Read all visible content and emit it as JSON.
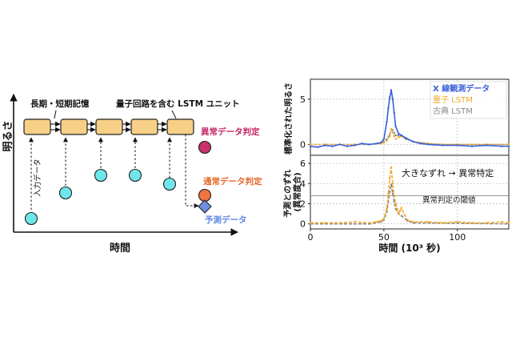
{
  "diagram": {
    "axis_y_label": "明るさ",
    "axis_x_label": "時間",
    "lstm_label": "長期・短期記憶",
    "quantum_label": "量子回路を含む LSTM ユニット",
    "input_label": "入力データ",
    "anomaly_label": "異常データ判定",
    "normal_label": "通常データ判定",
    "predict_label": "予測データ",
    "colors": {
      "cell_fill": "#f7cf86",
      "cell_stroke": "#222222",
      "input_dot": "#6fe6ea",
      "anomaly_dot": "#c7326b",
      "normal_dot": "#ee7440",
      "predict_diamond": "#6f8ee0",
      "anomaly_text": "#c52b67",
      "normal_text": "#e46a2b",
      "predict_text": "#5f86e0"
    }
  },
  "chart_data": [
    {
      "type": "line",
      "ylabel": "標準化された明るさ",
      "xlim": [
        0,
        135
      ],
      "ylim": [
        -1.2,
        7.2
      ],
      "yticks": [
        0,
        5
      ],
      "grid": true,
      "legend_position": "top-right",
      "series": [
        {
          "name": "X 線観測データ",
          "color": "#3a5fd9",
          "x": [
            0,
            5,
            10,
            15,
            20,
            25,
            30,
            35,
            40,
            45,
            48,
            50,
            52,
            53,
            54,
            55,
            56,
            57,
            58,
            60,
            62,
            65,
            70,
            75,
            80,
            90,
            100,
            110,
            120,
            130,
            135
          ],
          "y": [
            -0.2,
            -0.3,
            -0.1,
            -0.2,
            0.0,
            -0.2,
            -0.1,
            0.1,
            0.0,
            0.1,
            0.2,
            0.6,
            2.5,
            4.0,
            5.2,
            6.0,
            5.0,
            3.5,
            2.0,
            1.2,
            1.0,
            0.7,
            0.3,
            0.1,
            0.0,
            -0.1,
            -0.1,
            -0.2,
            -0.1,
            -0.2,
            -0.2
          ]
        },
        {
          "name": "量子 LSTM",
          "color": "#f2a92b",
          "x": [
            0,
            10,
            20,
            30,
            40,
            48,
            50,
            52,
            54,
            55,
            56,
            57,
            58,
            60,
            62,
            65,
            70,
            80,
            90,
            100,
            110,
            120,
            135
          ],
          "y": [
            0.0,
            0.0,
            0.0,
            0.0,
            0.0,
            0.1,
            0.2,
            0.4,
            0.9,
            1.7,
            1.3,
            0.9,
            0.6,
            0.8,
            0.9,
            0.7,
            0.3,
            0.1,
            0.0,
            0.0,
            0.0,
            0.0,
            0.0
          ]
        },
        {
          "name": "古典 LSTM",
          "color": "#8a8a8a",
          "x": [
            0,
            10,
            20,
            30,
            40,
            48,
            50,
            52,
            54,
            55,
            56,
            57,
            58,
            60,
            62,
            65,
            70,
            80,
            90,
            100,
            110,
            120,
            135
          ],
          "y": [
            0.0,
            0.0,
            0.0,
            0.0,
            0.0,
            0.1,
            0.3,
            0.6,
            1.1,
            1.6,
            1.6,
            1.3,
            1.0,
            1.0,
            0.9,
            0.6,
            0.3,
            0.1,
            0.0,
            0.0,
            0.0,
            0.0,
            0.0
          ]
        }
      ]
    },
    {
      "type": "line",
      "ylabel": "予測とのずれ\n(異常度合)",
      "xlabel": "時間 (10³ 秒)",
      "xlim": [
        0,
        135
      ],
      "ylim": [
        -0.5,
        6.8
      ],
      "xticks": [
        0,
        50,
        100
      ],
      "yticks": [
        0,
        2,
        4,
        6
      ],
      "grid": true,
      "threshold": 2.8,
      "threshold_label": "異常判定の閾値",
      "annotation": "大きなずれ → 異常特定",
      "series": [
        {
          "name": "量子 LSTM",
          "color": "#f2a92b",
          "x": [
            0,
            10,
            20,
            30,
            40,
            45,
            48,
            50,
            52,
            53,
            54,
            55,
            56,
            57,
            58,
            59,
            60,
            61,
            62,
            64,
            66,
            70,
            80,
            90,
            100,
            110,
            120,
            130,
            135
          ],
          "y": [
            0.1,
            0.1,
            0.1,
            0.2,
            0.1,
            0.2,
            0.3,
            0.5,
            1.5,
            3.0,
            4.5,
            5.6,
            4.0,
            2.8,
            2.0,
            1.5,
            1.0,
            1.3,
            1.6,
            0.9,
            0.4,
            0.2,
            0.2,
            0.1,
            0.2,
            0.1,
            0.1,
            0.2,
            0.1
          ]
        },
        {
          "name": "古典 LSTM",
          "color": "#8a8a8a",
          "x": [
            0,
            40,
            48,
            50,
            52,
            53,
            54,
            55,
            56,
            57,
            58,
            60,
            62,
            66,
            70,
            135
          ],
          "y": [
            0.0,
            0.0,
            0.2,
            0.4,
            1.2,
            2.2,
            3.2,
            3.9,
            3.0,
            2.2,
            1.5,
            1.0,
            0.8,
            0.3,
            0.1,
            0.0
          ]
        }
      ]
    }
  ]
}
